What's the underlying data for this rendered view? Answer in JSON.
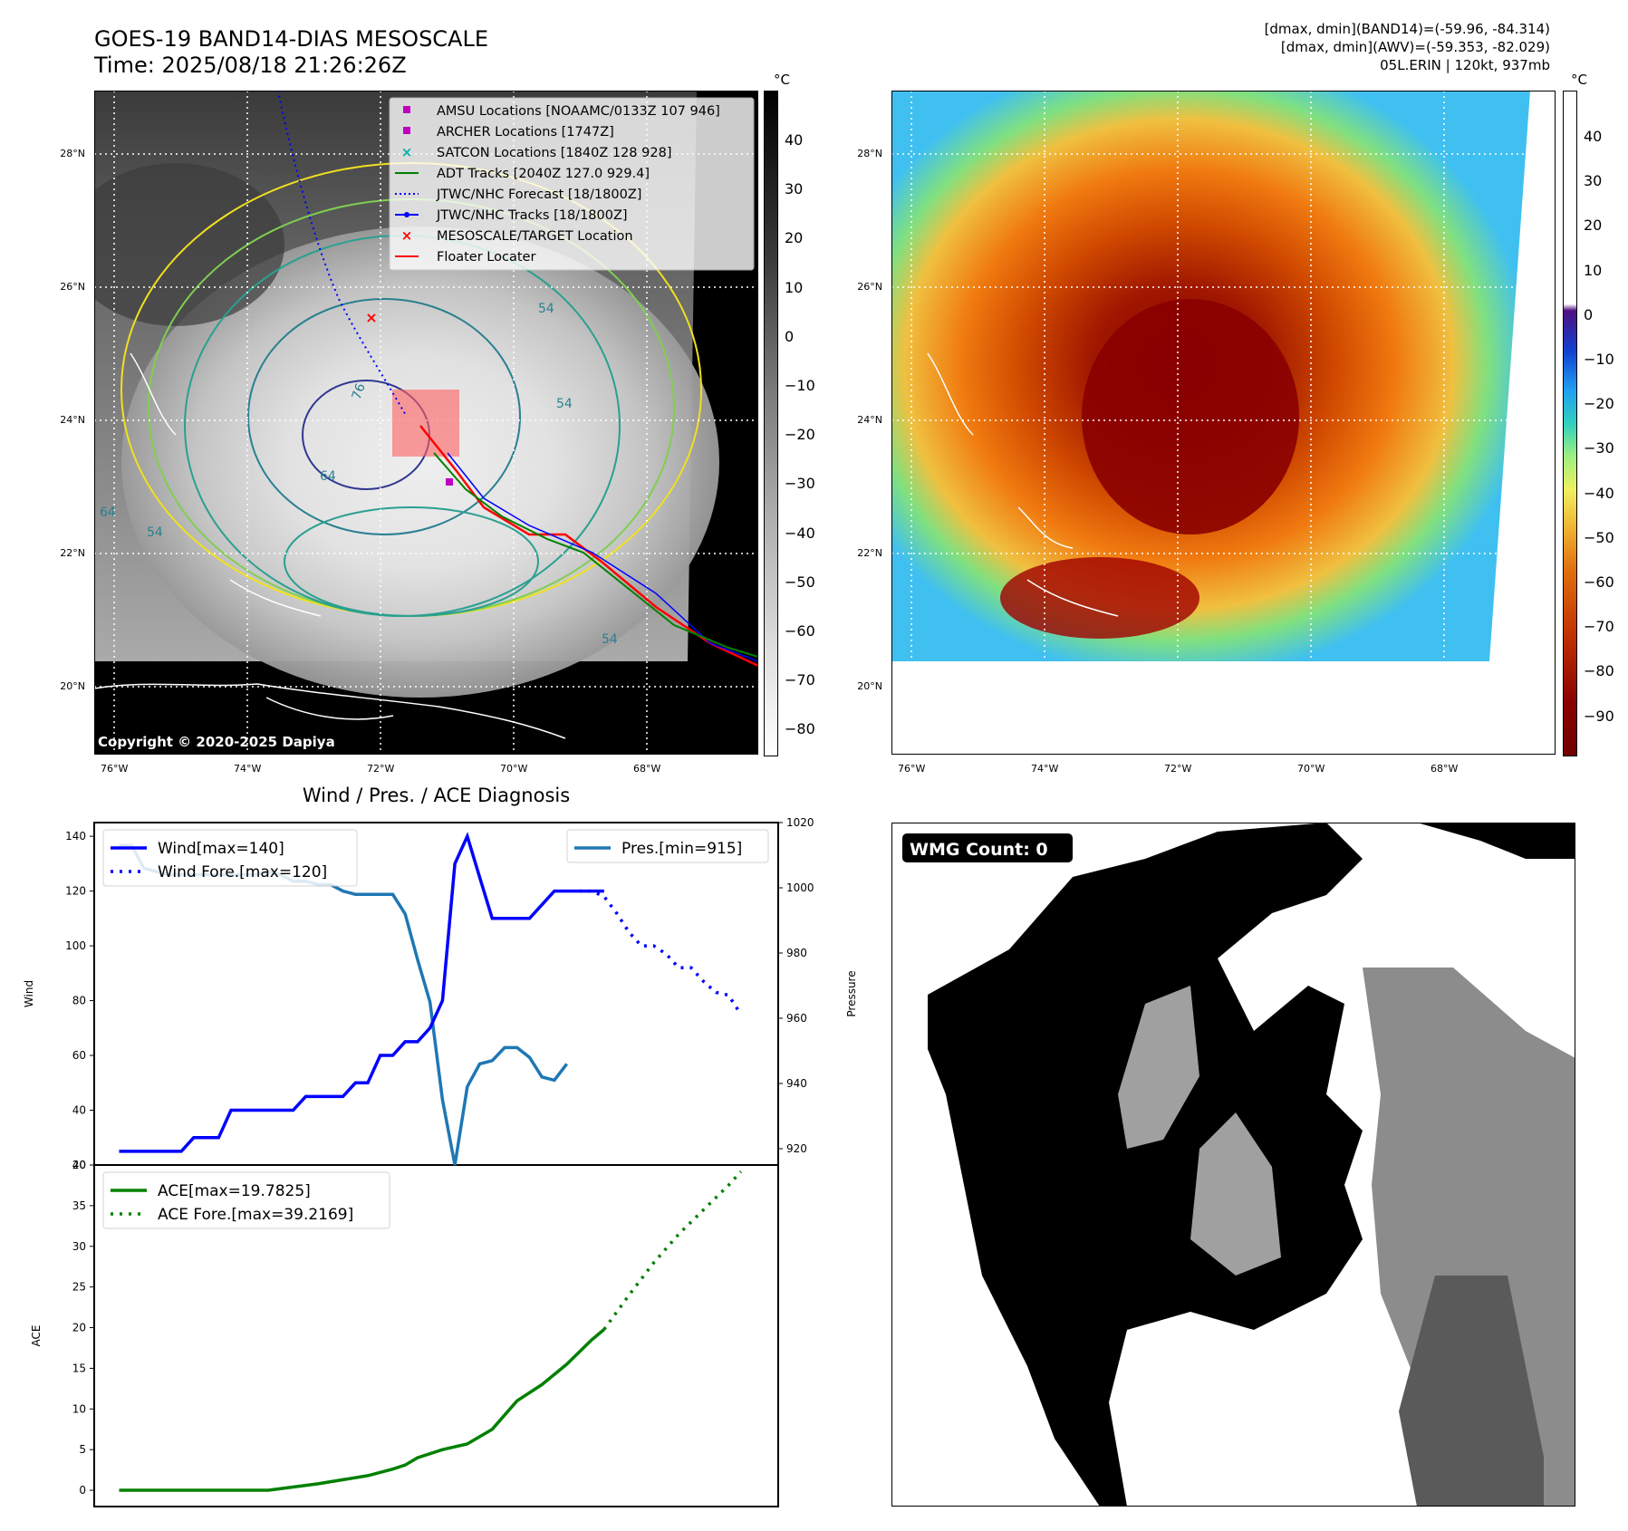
{
  "header": {
    "title_line1": "GOES-19 BAND14-DIAS MESOSCALE",
    "title_line2": "Time: 2025/08/18 21:26:26Z",
    "stats_line1": "[dmax, dmin](BAND14)=(-59.96, -84.314)",
    "stats_line2": "[dmax, dmin](AWV)=(-59.353, -82.029)",
    "stats_line3": "05L.ERIN | 120kt, 937mb"
  },
  "colors": {
    "wind": "#0000ff",
    "pressure": "#1f77b4",
    "ace": "#008000",
    "track_red": "#ff0000",
    "adt_green": "#008000",
    "amsu": "#c000c0",
    "satcon": "#00b0b0"
  },
  "map_axes": {
    "lat_labels": [
      "28°N",
      "26°N",
      "24°N",
      "22°N",
      "20°N"
    ],
    "lon_labels": [
      "76°W",
      "74°W",
      "72°W",
      "70°W",
      "68°W"
    ],
    "lat_range": [
      19.0,
      29.0
    ],
    "lon_range": [
      -76.3,
      -66.3
    ]
  },
  "ir_panel": {
    "colorbar_unit": "°C",
    "colorbar_ticks": [
      "40",
      "30",
      "20",
      "10",
      "0",
      "−10",
      "−20",
      "−30",
      "−40",
      "−50",
      "−60",
      "−70",
      "−80"
    ],
    "copyright": "Copyright © 2020-2025 Dapiya",
    "legend": [
      {
        "label": "AMSU Locations [NOAAMC/0133Z 107 946]",
        "symbol": "square",
        "color": "#c000c0"
      },
      {
        "label": "ARCHER Locations [1747Z]",
        "symbol": "square",
        "color": "#c000c0"
      },
      {
        "label": "SATCON Locations [1840Z 128 928]",
        "symbol": "x",
        "color": "#00b0b0"
      },
      {
        "label": "ADT Tracks [2040Z 127.0 929.4]",
        "symbol": "line",
        "color": "#008000"
      },
      {
        "label": "JTWC/NHC Forecast [18/1800Z]",
        "symbol": "dotted",
        "color": "#0000ff"
      },
      {
        "label": "JTWC/NHC Tracks [18/1800Z]",
        "symbol": "line-dot",
        "color": "#0000ff"
      },
      {
        "label": "MESOSCALE/TARGET Location",
        "symbol": "x",
        "color": "#ff0000"
      },
      {
        "label": "Floater Locater",
        "symbol": "line",
        "color": "#ff0000"
      }
    ],
    "contour_labels": [
      "76",
      "64",
      "54",
      "54",
      "54",
      "64",
      "54"
    ]
  },
  "awv_panel": {
    "colorbar_unit": "°C",
    "colorbar_ticks": [
      "40",
      "30",
      "20",
      "10",
      "0",
      "−10",
      "−20",
      "−30",
      "−40",
      "−50",
      "−60",
      "−70",
      "−80",
      "−90"
    ]
  },
  "wmg_panel": {
    "badge": "WMG Count: 0"
  },
  "diagnosis": {
    "title": "Wind / Pres. / ACE Diagnosis"
  },
  "chart_data": [
    {
      "type": "line",
      "title": "Wind / Pres. / ACE Diagnosis",
      "ylabel": "Wind",
      "y2label": "Pressure",
      "ylim": [
        20,
        145
      ],
      "y2lim": [
        915,
        1020
      ],
      "yticks": [
        "140",
        "120",
        "100",
        "80",
        "60",
        "40",
        "20"
      ],
      "y2ticks": [
        "1020",
        "1000",
        "980",
        "960",
        "940",
        "920"
      ],
      "x": [
        0,
        1,
        2,
        3,
        4,
        5,
        6,
        7,
        8,
        9,
        10,
        11,
        12,
        13,
        14,
        15,
        16,
        17,
        18,
        19,
        20,
        21,
        22,
        23,
        24,
        25,
        26,
        27,
        28,
        29,
        30,
        31,
        32,
        33,
        34,
        35,
        36,
        37,
        38,
        39,
        40,
        41,
        42,
        43,
        44,
        45,
        46,
        47,
        48,
        49,
        50
      ],
      "series": [
        {
          "name": "Wind[max=140]",
          "axis": "left",
          "style": "solid",
          "x": [
            0,
            5,
            6,
            8,
            9,
            14,
            15,
            18,
            19,
            20,
            21,
            22,
            23,
            24,
            25,
            26,
            27,
            28,
            29,
            30,
            31,
            32,
            33,
            34,
            35,
            36,
            37,
            38,
            39
          ],
          "values": [
            25,
            25,
            30,
            30,
            40,
            40,
            45,
            45,
            50,
            50,
            60,
            60,
            65,
            65,
            70,
            80,
            130,
            140,
            125,
            110,
            110,
            110,
            110,
            115,
            120,
            120,
            120,
            120,
            120
          ]
        },
        {
          "name": "Wind Fore.[max=120]",
          "axis": "left",
          "style": "dotted",
          "x": [
            37,
            38,
            39,
            40,
            41,
            42,
            43,
            44,
            45,
            46,
            47,
            48,
            49,
            50
          ],
          "values": [
            120,
            120,
            118,
            112,
            105,
            100,
            100,
            97,
            92,
            92,
            87,
            83,
            82,
            75
          ]
        },
        {
          "name": "Pres.[min=915]",
          "axis": "right",
          "style": "solid",
          "x": [
            0,
            1,
            2,
            3,
            4,
            5,
            6,
            7,
            8,
            9,
            10,
            11,
            12,
            13,
            14,
            15,
            16,
            17,
            18,
            19,
            20,
            21,
            22,
            23,
            24,
            25,
            26,
            27,
            28,
            29,
            30,
            31,
            32,
            33,
            34,
            35,
            36
          ],
          "values": [
            1013,
            1013,
            1006,
            1005,
            1004,
            1004,
            1004,
            1004,
            1004,
            1004,
            1004,
            1004,
            1005,
            1004,
            1002,
            1002,
            1001,
            1001,
            999,
            998,
            998,
            998,
            998,
            992,
            978,
            965,
            935,
            915,
            939,
            946,
            947,
            951,
            951,
            948,
            942,
            941,
            946
          ]
        }
      ]
    },
    {
      "type": "line",
      "ylabel": "ACE",
      "ylim": [
        -2,
        40
      ],
      "yticks": [
        "40",
        "35",
        "30",
        "25",
        "20",
        "15",
        "10",
        "5",
        "0"
      ],
      "series": [
        {
          "name": "ACE[max=19.7825]",
          "style": "solid",
          "x": [
            0,
            4,
            8,
            12,
            16,
            18,
            20,
            21,
            22,
            23,
            24,
            26,
            28,
            30,
            32,
            34,
            36,
            38,
            39
          ],
          "values": [
            0,
            0,
            0,
            0,
            0.8,
            1.3,
            1.8,
            2.2,
            2.6,
            3.1,
            4.0,
            5.0,
            5.7,
            7.5,
            11,
            13,
            15.5,
            18.5,
            19.78
          ]
        },
        {
          "name": "ACE Fore.[max=39.2169]",
          "style": "dotted",
          "x": [
            39,
            41,
            43,
            45,
            47,
            49,
            50
          ],
          "values": [
            19.78,
            24,
            28,
            31.5,
            34.5,
            37.5,
            39.2
          ]
        }
      ]
    }
  ]
}
